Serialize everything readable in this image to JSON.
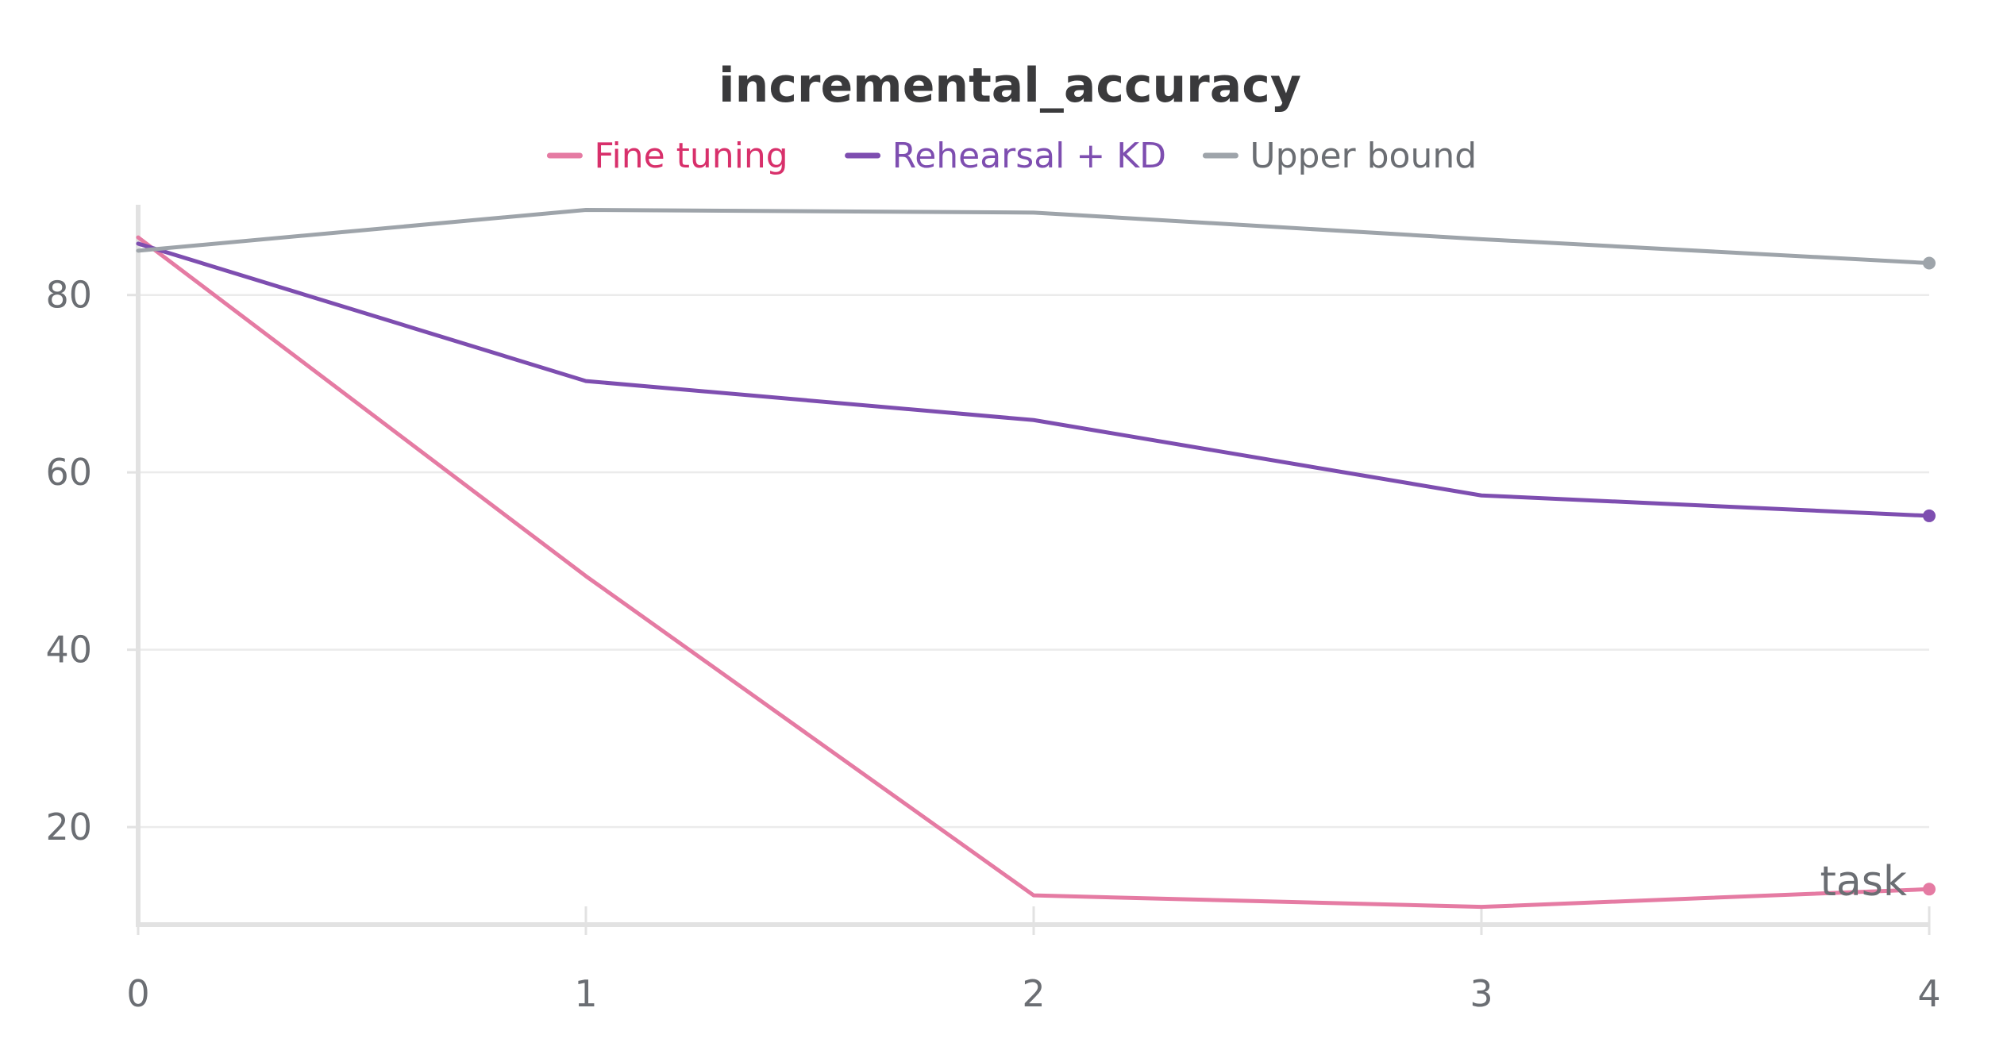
{
  "chart_data": {
    "type": "line",
    "title": "incremental_accuracy",
    "xlabel": "task",
    "ylabel": "",
    "x": [
      0,
      1,
      2,
      3,
      4
    ],
    "xlim": [
      0,
      4
    ],
    "ylim": [
      9,
      90
    ],
    "x_ticks": [
      "0",
      "1",
      "2",
      "3",
      "4"
    ],
    "y_ticks": [
      "20",
      "40",
      "60",
      "80"
    ],
    "y_tick_values": [
      20,
      40,
      60,
      80
    ],
    "grid": "horizontal",
    "legend_position": "top-center",
    "series": [
      {
        "name": "Fine tuning",
        "color": "#e57ba3",
        "label_color": "#d8306b",
        "values": [
          86.5,
          48.3,
          12.3,
          11.0,
          13.0
        ]
      },
      {
        "name": "Rehearsal + KD",
        "color": "#7e4eb0",
        "label_color": "#7e4eb0",
        "values": [
          85.8,
          70.3,
          65.9,
          57.4,
          55.1
        ]
      },
      {
        "name": "Upper bound",
        "color": "#9ea4aa",
        "label_color": "#6b6e73",
        "values": [
          85.0,
          89.6,
          89.3,
          86.3,
          83.6
        ]
      }
    ]
  }
}
